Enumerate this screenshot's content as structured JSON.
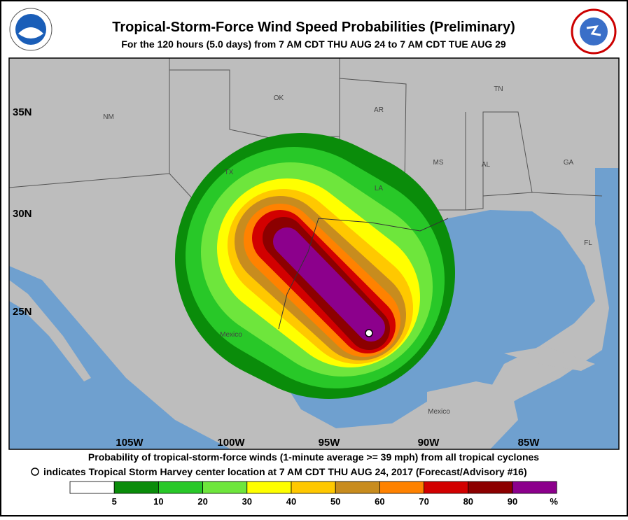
{
  "header": {
    "title": "Tropical-Storm-Force Wind Speed Probabilities (Preliminary)",
    "subtitle": "For the 120 hours (5.0 days) from 7 AM CDT THU AUG 24 to 7 AM CDT TUE AUG 29"
  },
  "map": {
    "latitude_labels": [
      "35N",
      "30N",
      "25N"
    ],
    "longitude_labels": [
      "105W",
      "100W",
      "95W",
      "90W",
      "85W"
    ],
    "region_labels": [
      "NM",
      "OK",
      "AR",
      "TN",
      "TX",
      "LA",
      "MS",
      "AL",
      "GA",
      "FL",
      "Mexico",
      "Mexico"
    ]
  },
  "footer": {
    "line1": "Probability of tropical-storm-force winds (1-minute average >= 39 mph) from all tropical cyclones",
    "line2": "indicates Tropical Storm Harvey center location at 7 AM CDT THU AUG 24, 2017 (Forecast/Advisory #16)"
  },
  "legend": {
    "colors": [
      "#ffffff",
      "#0a8c0a",
      "#28c828",
      "#6ee63c",
      "#ffff00",
      "#ffc800",
      "#c88c1e",
      "#ff8200",
      "#d20000",
      "#8c0000",
      "#8c008c"
    ],
    "ticks": [
      5,
      10,
      20,
      30,
      40,
      50,
      60,
      70,
      80,
      90
    ],
    "unit": "%"
  }
}
